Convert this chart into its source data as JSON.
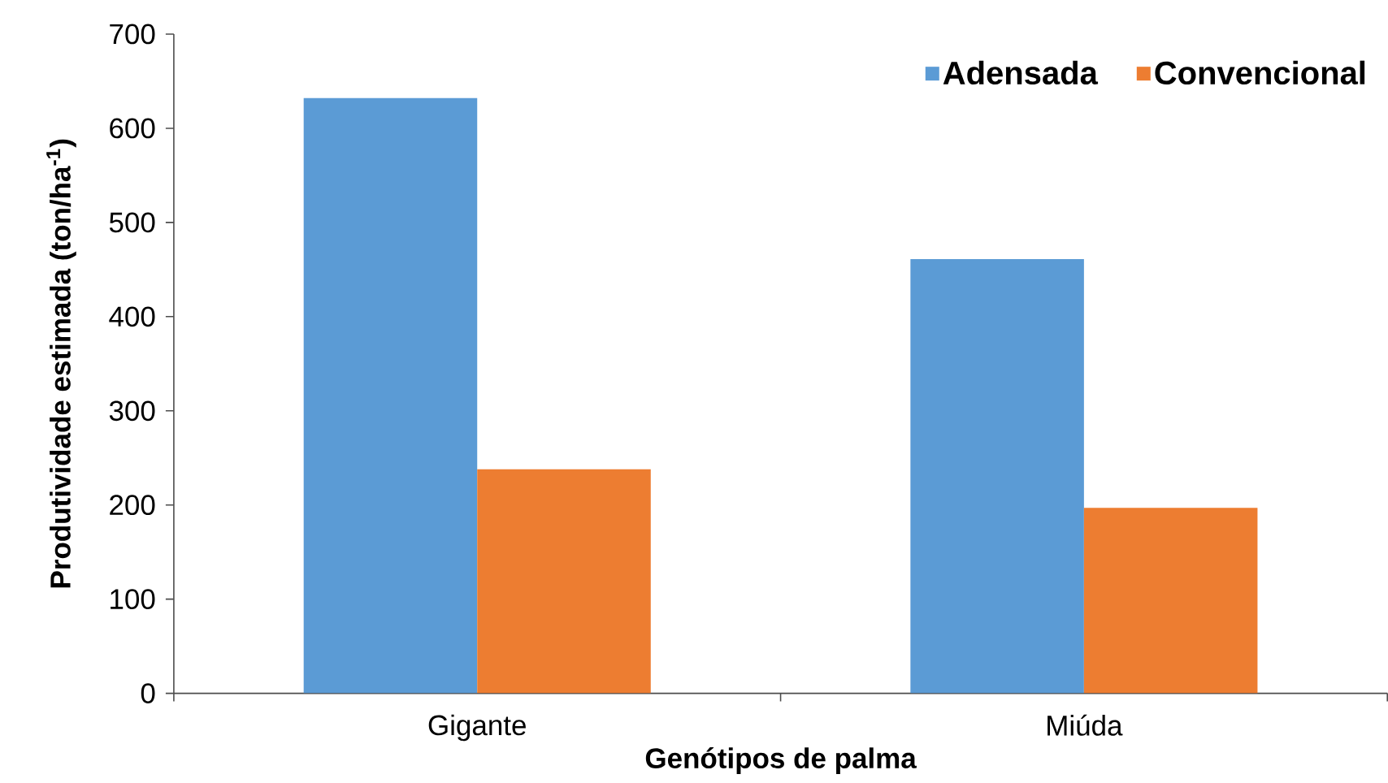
{
  "chart_data": {
    "type": "bar",
    "xlabel": "Genótipos de palma",
    "ylabel": "Produtividade estimada (ton/ha$^{-1}$)",
    "categories": [
      "Gigante",
      "Miúda"
    ],
    "series": [
      {
        "name": "Adensada",
        "color": "#5b9bd5",
        "values": [
          632,
          461
        ]
      },
      {
        "name": "Convencional",
        "color": "#ed7d31",
        "values": [
          238,
          197
        ]
      }
    ],
    "ylim": [
      0,
      700
    ],
    "yticks": [
      0,
      100,
      200,
      300,
      400,
      500,
      600,
      700
    ],
    "legend": "top right"
  }
}
